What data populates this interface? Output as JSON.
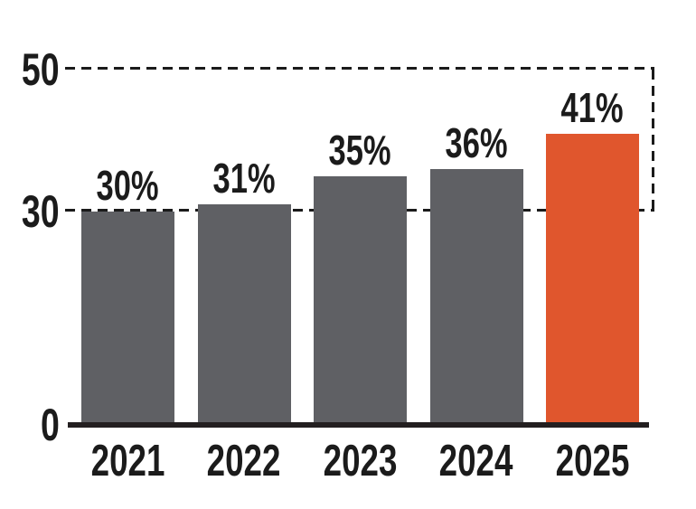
{
  "chart_data": {
    "type": "bar",
    "title": "",
    "xlabel": "",
    "ylabel": "",
    "categories": [
      "2021",
      "2022",
      "2023",
      "2024",
      "2025"
    ],
    "values": [
      30,
      31,
      35,
      36,
      41
    ],
    "value_labels": [
      "30%",
      "31%",
      "35%",
      "36%",
      "41%"
    ],
    "highlight_index": 4,
    "ylim": [
      0,
      50
    ],
    "yticks": [
      0,
      30,
      50
    ],
    "gridlines": [
      30,
      50
    ],
    "grid_style": "dashed",
    "right_dashed_boundary": {
      "from_value": 50,
      "to_value": 30
    },
    "legend": null,
    "colors": {
      "bar": "#5F6064",
      "highlight": "#E0562D",
      "text": "#1B1B1B",
      "axis": "#231F20",
      "grid": "#1B1B1B",
      "background": "#FFFFFF"
    }
  }
}
